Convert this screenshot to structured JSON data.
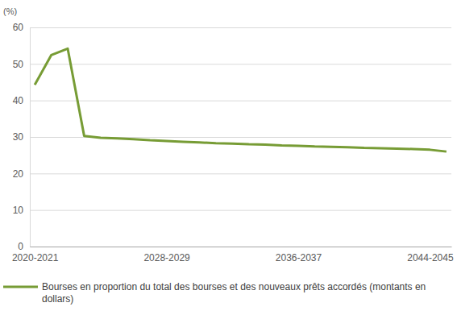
{
  "chart_data": {
    "type": "line",
    "y_label": "(%)",
    "categories": [
      "2020-2021",
      null,
      null,
      null,
      null,
      null,
      null,
      null,
      "2028-2029",
      null,
      null,
      null,
      null,
      null,
      null,
      null,
      "2036-2037",
      null,
      null,
      null,
      null,
      null,
      null,
      null,
      "2044-2045",
      null
    ],
    "series": [
      {
        "name": "Bourses en proportion du total des bourses et des nouveaux prêts accordés (montants en dollars)",
        "color": "#779c35",
        "values": [
          44.3,
          52.4,
          54.2,
          30.3,
          29.8,
          29.6,
          29.4,
          29.1,
          28.9,
          28.7,
          28.5,
          28.3,
          28.2,
          28.0,
          27.9,
          27.7,
          27.6,
          27.4,
          27.3,
          27.2,
          27.0,
          26.9,
          26.8,
          26.7,
          26.5,
          26.0
        ]
      }
    ],
    "ylim": [
      0,
      60
    ],
    "yticks": [
      0,
      10,
      20,
      30,
      40,
      50,
      60
    ],
    "grid": true,
    "legend": "bottom"
  }
}
